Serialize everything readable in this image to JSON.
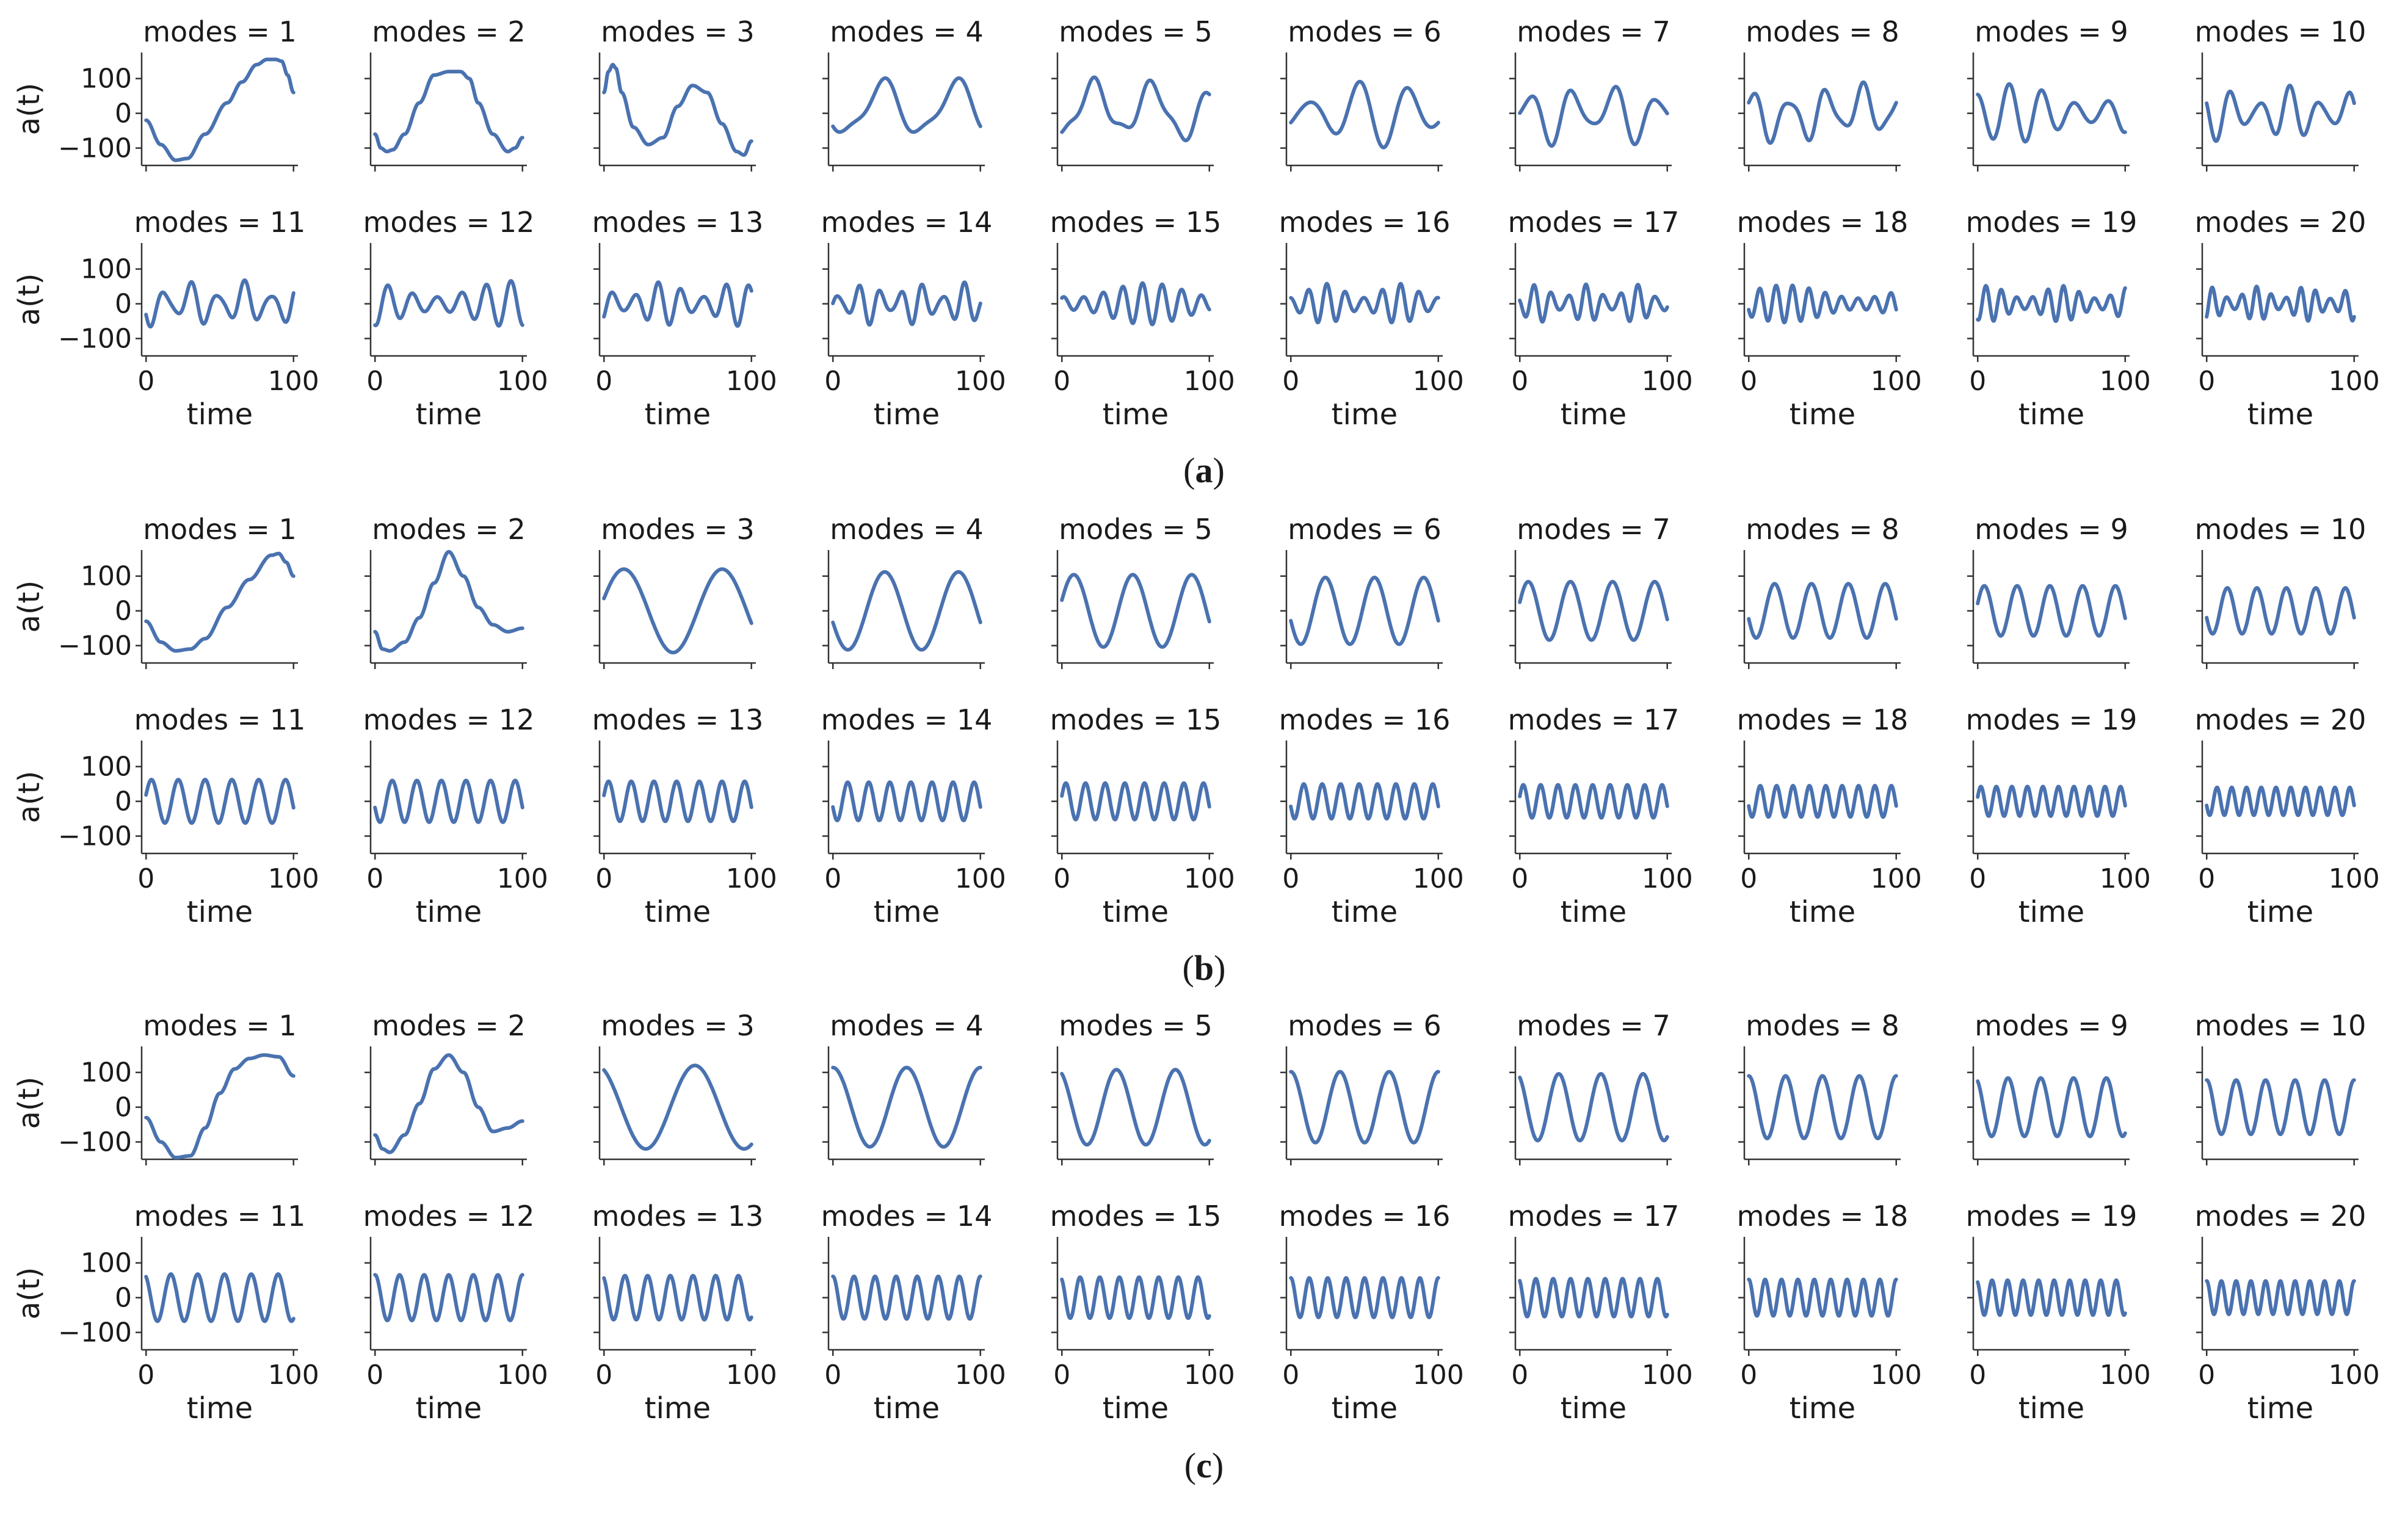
{
  "figure": {
    "xlabel": "time",
    "ylabel": "a(t)",
    "title_prefix": "modes = ",
    "xticks": [
      0,
      100
    ],
    "yticks": [
      100,
      0,
      -100
    ],
    "ylim": [
      -150,
      175
    ],
    "xlim": [
      -3,
      103
    ],
    "series_color": "#4a72b0",
    "axis_color": "#333333",
    "text_color": "#1a1a1a"
  },
  "chart_data": [
    {
      "type": "line",
      "panel": "a",
      "label_letter": "a",
      "variant": "irregular",
      "modes": [
        1,
        2,
        3,
        4,
        5,
        6,
        7,
        8,
        9,
        10,
        11,
        12,
        13,
        14,
        15,
        16,
        17,
        18,
        19,
        20
      ],
      "ylabel": "a(t)",
      "xlabel": "time",
      "xlim": [
        0,
        100
      ],
      "ylim": [
        -150,
        175
      ],
      "series": [
        {
          "name": "modes = 1",
          "x": [
            0,
            10,
            20,
            28,
            40,
            55,
            65,
            75,
            82,
            88,
            92,
            96,
            100
          ],
          "y": [
            -20,
            -90,
            -135,
            -130,
            -60,
            30,
            90,
            140,
            155,
            155,
            150,
            110,
            60
          ]
        },
        {
          "name": "modes = 2",
          "x": [
            0,
            4,
            8,
            12,
            20,
            30,
            40,
            50,
            58,
            64,
            70,
            80,
            90,
            95,
            100
          ],
          "y": [
            -60,
            -100,
            -110,
            -105,
            -60,
            30,
            110,
            120,
            120,
            100,
            30,
            -60,
            -110,
            -100,
            -70
          ]
        },
        {
          "name": "modes = 3",
          "x": [
            0,
            3,
            6,
            8,
            12,
            20,
            30,
            40,
            50,
            60,
            70,
            80,
            90,
            95,
            100
          ],
          "y": [
            60,
            120,
            140,
            130,
            60,
            -40,
            -90,
            -70,
            20,
            80,
            60,
            -30,
            -110,
            -120,
            -80
          ]
        }
      ],
      "series_note": "Panel (a) curves read as amplitude ~100–150 at low modes with irregular envelopes; higher modes oscillate with period ≈ 100/(modes/2) and amplitude ≈ 60–80."
    },
    {
      "type": "line",
      "panel": "b",
      "label_letter": "b",
      "variant": "smooth",
      "modes": [
        1,
        2,
        3,
        4,
        5,
        6,
        7,
        8,
        9,
        10,
        11,
        12,
        13,
        14,
        15,
        16,
        17,
        18,
        19,
        20
      ],
      "ylabel": "a(t)",
      "xlabel": "time",
      "xlim": [
        0,
        100
      ],
      "ylim": [
        -150,
        175
      ],
      "series": [
        {
          "name": "modes = 1",
          "x": [
            0,
            10,
            20,
            30,
            40,
            55,
            70,
            85,
            90,
            95,
            100
          ],
          "y": [
            -30,
            -90,
            -115,
            -110,
            -80,
            10,
            90,
            160,
            165,
            140,
            100
          ]
        },
        {
          "name": "modes = 2",
          "x": [
            0,
            5,
            10,
            20,
            30,
            40,
            50,
            60,
            70,
            80,
            90,
            100
          ],
          "y": [
            -60,
            -110,
            -115,
            -90,
            -20,
            80,
            170,
            100,
            10,
            -40,
            -60,
            -50
          ]
        }
      ]
    },
    {
      "type": "line",
      "panel": "c",
      "label_letter": "c",
      "variant": "regular",
      "modes": [
        1,
        2,
        3,
        4,
        5,
        6,
        7,
        8,
        9,
        10,
        11,
        12,
        13,
        14,
        15,
        16,
        17,
        18,
        19,
        20
      ],
      "ylabel": "a(t)",
      "xlabel": "time",
      "xlim": [
        0,
        100
      ],
      "ylim": [
        -150,
        175
      ],
      "series": [
        {
          "name": "modes = 1",
          "x": [
            0,
            10,
            20,
            30,
            40,
            50,
            60,
            70,
            80,
            90,
            100
          ],
          "y": [
            -30,
            -100,
            -145,
            -140,
            -60,
            40,
            110,
            140,
            150,
            145,
            90
          ]
        },
        {
          "name": "modes = 2",
          "x": [
            0,
            5,
            10,
            20,
            30,
            40,
            50,
            60,
            70,
            80,
            90,
            100
          ],
          "y": [
            -80,
            -120,
            -130,
            -80,
            10,
            110,
            150,
            100,
            0,
            -70,
            -60,
            -40
          ]
        }
      ]
    }
  ]
}
